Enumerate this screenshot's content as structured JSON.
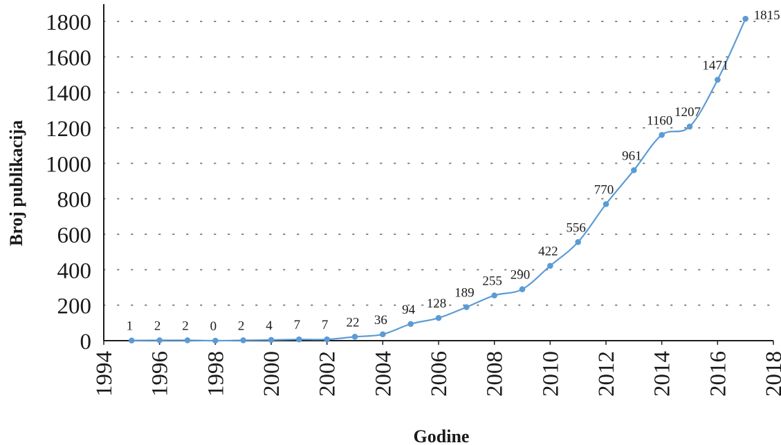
{
  "chart_data": {
    "type": "line",
    "title": "",
    "xlabel": "Godine",
    "ylabel": "Broj publikacija",
    "xlim": [
      1994,
      2018
    ],
    "ylim": [
      0,
      1800
    ],
    "x_ticks": [
      "1994",
      "1996",
      "1998",
      "2000",
      "2002",
      "2004",
      "2006",
      "2008",
      "2010",
      "2012",
      "2014",
      "2016",
      "2018"
    ],
    "y_ticks": [
      "0",
      "200",
      "400",
      "600",
      "800",
      "1000",
      "1200",
      "1400",
      "1600",
      "1800"
    ],
    "grid": "dotted",
    "legend": "none",
    "series": [
      {
        "color": "#5b9bd5",
        "x": [
          1995,
          1996,
          1997,
          1998,
          1999,
          2000,
          2001,
          2002,
          2003,
          2004,
          2005,
          2006,
          2007,
          2008,
          2009,
          2010,
          2011,
          2012,
          2013,
          2014,
          2015,
          2016,
          2017
        ],
        "values": [
          1,
          2,
          2,
          0,
          2,
          4,
          7,
          7,
          22,
          36,
          94,
          128,
          189,
          255,
          290,
          422,
          556,
          770,
          961,
          1160,
          1207,
          1471,
          1815
        ],
        "labels": [
          "1",
          "2",
          "2",
          "0",
          "2",
          "4",
          "7",
          "7",
          "22",
          "36",
          "94",
          "128",
          "189",
          "255",
          "290",
          "422",
          "556",
          "770",
          "961",
          "1160",
          "1207",
          "1471",
          "1815"
        ]
      }
    ]
  }
}
